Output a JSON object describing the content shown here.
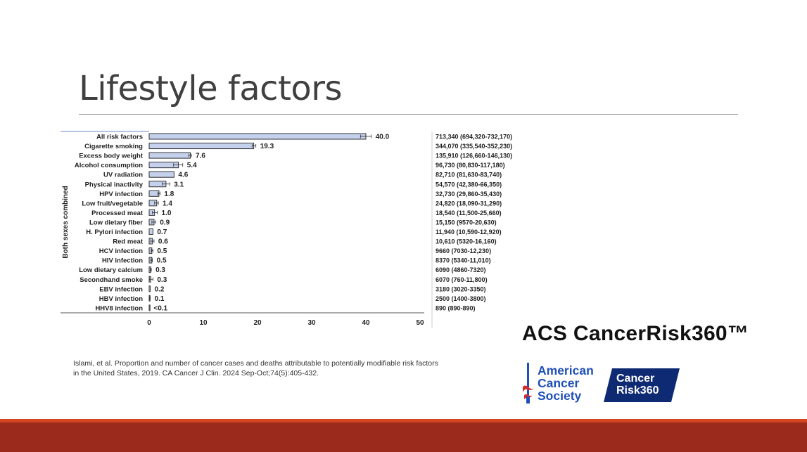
{
  "slide": {
    "title": "Lifestyle factors",
    "brand": "ACS CancerRisk360™",
    "citation": "Islami, et al. Proportion and number of cancer cases and deaths attributable to potentially modifiable risk factors in the United States, 2019. CA Cancer J Clin. 2024 Sep-Oct;74(5):405-432.",
    "acs_logo": [
      "American",
      "Cancer",
      "Society"
    ],
    "cancerrisk_logo": [
      "Cancer",
      "Risk",
      "360"
    ]
  },
  "colors": {
    "bar_fill": "#c5d1ec",
    "bar_stroke": "#333333",
    "footer_dark": "#9c2a1c",
    "footer_light": "#d2451e",
    "acs_blue": "#1f4fb8",
    "acs_red": "#d92b2b",
    "badge_navy": "#0e2a73"
  },
  "chart_data": {
    "type": "bar",
    "orientation": "horizontal",
    "ylabel": "Both sexes combined",
    "xlim": [
      0,
      50
    ],
    "xticks": [
      0,
      10,
      20,
      30,
      40,
      50
    ],
    "categories": [
      "All risk factors",
      "Cigarette smoking",
      "Excess body weight",
      "Alcohol consumption",
      "UV radiation",
      "Physical inactivity",
      "HPV infection",
      "Low fruit/vegetable",
      "Processed meat",
      "Low dietary fiber",
      "H. Pylori infection",
      "Red meat",
      "HCV infection",
      "HIV infection",
      "Low dietary calcium",
      "Secondhand smoke",
      "EBV infection",
      "HBV infection",
      "HHV8 infection"
    ],
    "values": [
      40.0,
      19.3,
      7.6,
      5.4,
      4.6,
      3.1,
      1.8,
      1.4,
      1.0,
      0.9,
      0.7,
      0.6,
      0.5,
      0.5,
      0.3,
      0.3,
      0.2,
      0.1,
      0.05
    ],
    "value_labels": [
      "40.0",
      "19.3",
      "7.6",
      "5.4",
      "4.6",
      "3.1",
      "1.8",
      "1.4",
      "1.0",
      "0.9",
      "0.7",
      "0.6",
      "0.5",
      "0.5",
      "0.3",
      "0.3",
      "0.2",
      "0.1",
      "<0.1"
    ],
    "error_low": [
      39.0,
      19.0,
      7.3,
      4.5,
      4.6,
      2.4,
      1.6,
      1.0,
      0.6,
      0.5,
      0.6,
      0.3,
      0.4,
      0.3,
      0.2,
      0.05,
      0.2,
      0.05,
      0.05
    ],
    "error_high": [
      41.0,
      19.7,
      7.8,
      6.2,
      4.6,
      3.8,
      2.0,
      1.7,
      1.5,
      1.2,
      0.7,
      0.9,
      0.7,
      0.6,
      0.4,
      0.7,
      0.2,
      0.2,
      0.05
    ],
    "counts": [
      "713,340 (694,320-732,170)",
      "344,070 (335,540-352,230)",
      "135,910 (126,660-146,130)",
      "96,730 (80,830-117,180)",
      "82,710 (81,630-83,740)",
      "54,570 (42,380-66,350)",
      "32,730 (29,860-35,430)",
      "24,820 (18,090-31,290)",
      "18,540 (11,500-25,660)",
      "15,150 (9570-20,630)",
      "11,940 (10,590-12,920)",
      "10,610 (5320-16,160)",
      "9660 (7030-12,230)",
      "8370 (5340-11,010)",
      "6090 (4860-7320)",
      "6070 (760-11,800)",
      "3180 (3020-3350)",
      "2500 (1400-3800)",
      "890 (890-890)"
    ]
  }
}
